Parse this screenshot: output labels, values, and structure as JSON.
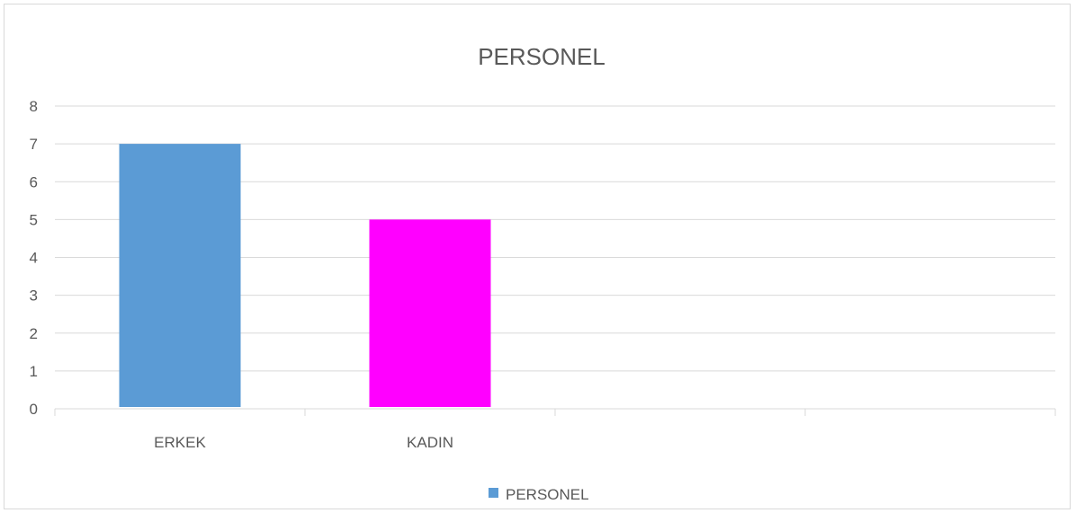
{
  "chart_data": {
    "type": "bar",
    "title": "PERSONEL",
    "categories": [
      "ERKEK",
      "KADIN",
      "",
      ""
    ],
    "series": [
      {
        "name": "PERSONEL",
        "values": [
          7,
          5,
          null,
          null
        ],
        "colors": [
          "#5b9bd5",
          "#ff00ff",
          null,
          null
        ]
      }
    ],
    "legend_swatch_color": "#5b9bd5",
    "ylim": [
      0,
      8
    ],
    "yticks": [
      "0",
      "1",
      "2",
      "3",
      "4",
      "5",
      "6",
      "7",
      "8"
    ],
    "grid": true,
    "legend_position": "bottom"
  }
}
